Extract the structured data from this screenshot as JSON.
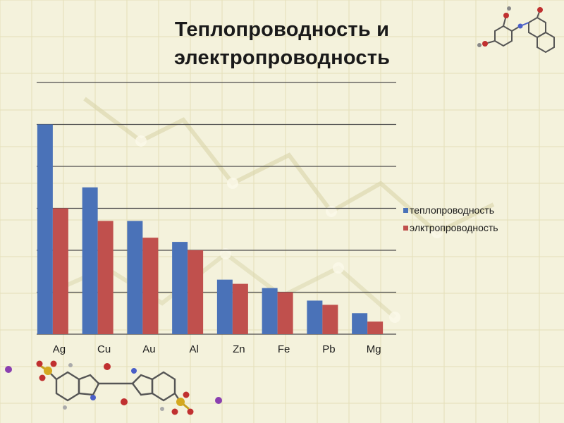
{
  "slide": {
    "title_line1": "Теплопроводность и",
    "title_line2": "электропроводность"
  },
  "background": {
    "tint": "#f4f2dc",
    "grid_color": "#e4dfb8",
    "decor_color": "#d8d3a8"
  },
  "chart_data": {
    "type": "bar",
    "title": "",
    "xlabel": "",
    "ylabel": "",
    "categories": [
      "Ag",
      "Cu",
      "Au",
      "Al",
      "Zn",
      "Fe",
      "Pb",
      "Mg"
    ],
    "series": [
      {
        "name": "теплопроводность",
        "color": "#4a72b8",
        "values": [
          5,
          3.5,
          2.7,
          2.2,
          1.3,
          1.1,
          0.8,
          0.5
        ]
      },
      {
        "name": "элктропроводность",
        "color": "#c0504d",
        "values": [
          3,
          2.7,
          2.3,
          2.0,
          1.2,
          1.0,
          0.7,
          0.3
        ]
      }
    ],
    "ylim": [
      0,
      6
    ],
    "grid": true,
    "legend_position": "right"
  }
}
